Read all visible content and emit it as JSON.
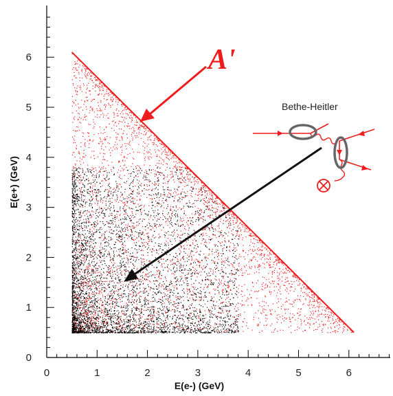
{
  "chart_data": {
    "type": "scatter",
    "title": "",
    "xlabel": "E(e-) (GeV)",
    "ylabel": "E(e+) (GeV)",
    "xlim": [
      0,
      6.8
    ],
    "ylim": [
      0,
      6.8
    ],
    "xticks": [
      0,
      1,
      2,
      3,
      4,
      5,
      6
    ],
    "yticks": [
      0,
      1,
      2,
      3,
      4,
      5,
      6
    ],
    "grid": false,
    "legend": "none",
    "kinematic_limit": {
      "e_min": 0.5,
      "e_sum_max": 6.6
    },
    "series": [
      {
        "color": "#ee1c1c",
        "description_values": {
          "x_range": [
            0.5,
            6.1
          ],
          "y_range": [
            0.5,
            6.1
          ],
          "distribution": "concentrated near x + y = 6.6"
        }
      },
      {
        "color": "#000000",
        "description_values": {
          "x_range": [
            0.5,
            4.0
          ],
          "y_range": [
            0.5,
            4.0
          ],
          "distribution": "concentrated near low energies"
        }
      }
    ],
    "annotations": [
      {
        "text": "A'",
        "color": "#ee1c1c"
      },
      {
        "text": "Bethe-Heitler",
        "color": "#222222"
      }
    ]
  },
  "colors": {
    "signal": "#ee1c1c",
    "background": "#000000",
    "diagram_ellipse": "#666666"
  },
  "icons": {
    "feynman_diagram": "bethe-heitler-diagram-icon",
    "cross_vertex": "circle-cross-icon"
  }
}
